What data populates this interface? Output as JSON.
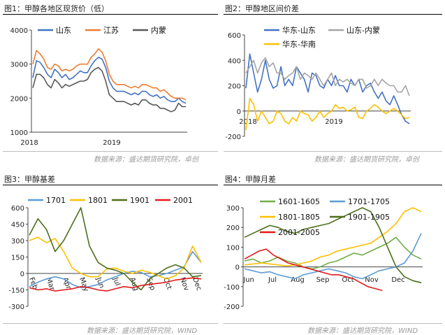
{
  "titles": {
    "fig1": "图1：甲醇各地区现货价（低）",
    "fig2": "图2：甲醇地区间价差",
    "fig3": "图3：甲醇基差",
    "fig4": "图4：甲醇月差"
  },
  "sources": {
    "top_left": "数据来源：盛达期货研究院，卓创",
    "top_right": "数据来源：盛达期货研究院，卓创",
    "bottom_left": "数据来源：盛达期货研究院，WIND",
    "bottom_right": "数据来源：盛达期货研究院，WIND"
  },
  "chart_data": [
    {
      "id": "fig1",
      "type": "line",
      "title": "图1：甲醇各地区现货价（低）",
      "ylim": [
        1000,
        4000
      ],
      "yticks": [
        1000,
        2000,
        3000,
        4000
      ],
      "x_tick_labels": [
        "2018",
        "2019"
      ],
      "legend": "top-left",
      "series": [
        {
          "name": "山东",
          "color": "#4472C4",
          "values": [
            2600,
            3100,
            3050,
            2900,
            2700,
            2600,
            2850,
            2750,
            2600,
            2700,
            2550,
            2600,
            2700,
            2800,
            2750,
            2750,
            2950,
            3100,
            3200,
            3150,
            2900,
            2500,
            2300,
            2200,
            2200,
            2200,
            2150,
            2100,
            2150,
            2100,
            2200,
            2200,
            2100,
            2050,
            2100,
            2000,
            2050,
            1950,
            1900,
            1900,
            2000,
            1900,
            1850
          ]
        },
        {
          "name": "江苏",
          "color": "#ED7D31",
          "values": [
            3000,
            3400,
            3300,
            3150,
            2900,
            2850,
            3000,
            2950,
            2800,
            2850,
            2800,
            2850,
            2950,
            3000,
            3000,
            3000,
            3200,
            3300,
            3450,
            3350,
            3100,
            2700,
            2500,
            2400,
            2400,
            2400,
            2350,
            2300,
            2350,
            2300,
            2400,
            2400,
            2350,
            2300,
            2300,
            2200,
            2250,
            2150,
            2050,
            2000,
            2000,
            2000,
            1950
          ]
        },
        {
          "name": "内蒙",
          "color": "#595959",
          "values": [
            2300,
            2700,
            2700,
            2600,
            2400,
            2300,
            2550,
            2450,
            2300,
            2400,
            2350,
            2400,
            2450,
            2500,
            2500,
            2550,
            2750,
            2850,
            2900,
            2800,
            2500,
            2100,
            2000,
            1900,
            1900,
            1900,
            1850,
            1800,
            1850,
            1800,
            1950,
            1950,
            1850,
            1800,
            1800,
            1700,
            1700,
            1650,
            1600,
            1650,
            1850,
            1750,
            1750
          ]
        }
      ]
    },
    {
      "id": "fig2",
      "type": "line",
      "title": "图2：甲醇地区间价差",
      "ylim": [
        -200,
        600
      ],
      "yticks": [
        -200,
        0,
        200,
        400,
        600
      ],
      "x_tick_labels": [
        "2018",
        "2019"
      ],
      "legend": "top",
      "series": [
        {
          "name": "华东-山东",
          "color": "#4472C4",
          "values": [
            180,
            450,
            300,
            150,
            250,
            400,
            250,
            180,
            200,
            350,
            200,
            250,
            200,
            350,
            300,
            250,
            150,
            300,
            280,
            200,
            180,
            250,
            200,
            280,
            200,
            200,
            150,
            250,
            200,
            250,
            150,
            200,
            220,
            150,
            100,
            150,
            80,
            50,
            120,
            50,
            -30,
            -80,
            -100
          ]
        },
        {
          "name": "山东-内蒙",
          "color": "#A5A5A5",
          "values": [
            300,
            350,
            400,
            300,
            380,
            420,
            350,
            380,
            300,
            300,
            250,
            280,
            300,
            350,
            250,
            300,
            280,
            250,
            300,
            250,
            200,
            250,
            300,
            200,
            250,
            230,
            250,
            220,
            200,
            250,
            250,
            180,
            200,
            250,
            200,
            250,
            220,
            200,
            200,
            150,
            150,
            200,
            120
          ]
        },
        {
          "name": "华东-华南",
          "color": "#FFC000",
          "values": [
            -150,
            100,
            50,
            -80,
            0,
            -50,
            -100,
            -80,
            0,
            -20,
            -80,
            -100,
            -50,
            -80,
            0,
            -20,
            -30,
            -80,
            -50,
            0,
            -50,
            -20,
            0,
            50,
            20,
            30,
            0,
            10,
            30,
            -50,
            -60,
            0,
            20,
            50,
            30,
            0,
            -20,
            0,
            20,
            0,
            -30,
            -60,
            -50
          ]
        }
      ]
    },
    {
      "id": "fig3",
      "type": "line",
      "title": "图3：甲醇基差",
      "ylim": [
        -300,
        600
      ],
      "yticks": [
        -300,
        -150,
        0,
        150,
        300,
        450,
        600
      ],
      "x_tick_labels": [
        "Feb",
        "Mar",
        "Apr",
        "May",
        "Jun",
        "Jul",
        "Aug",
        "Sep",
        "Oct",
        "Nov",
        "Dec"
      ],
      "legend": "top",
      "series": [
        {
          "name": "1701",
          "color": "#5B9BD5",
          "values": [
            -120,
            -80,
            -50,
            -30,
            -50,
            -100,
            -130,
            -120,
            -100,
            -60,
            -30,
            0,
            20,
            10,
            -30,
            -20,
            0,
            30,
            60,
            200,
            100
          ]
        },
        {
          "name": "1801",
          "color": "#FFC000",
          "values": [
            300,
            330,
            280,
            320,
            200,
            50,
            0,
            -30,
            -30,
            40,
            50,
            20,
            0,
            30,
            10,
            -20,
            -50,
            -20,
            50,
            250,
            100
          ]
        },
        {
          "name": "1901",
          "color": "#4E6E1C",
          "values": [
            350,
            500,
            400,
            200,
            300,
            450,
            600,
            250,
            100,
            50,
            30,
            0,
            -80,
            -150,
            -50,
            0,
            50,
            80,
            50,
            -30,
            -20
          ]
        },
        {
          "name": "2001",
          "color": "#E31A1C",
          "values": [
            -130,
            -150,
            -140,
            -160,
            -150,
            -140,
            -120,
            -130,
            -150,
            -160,
            -140,
            -120,
            -130,
            -110,
            -100,
            -90,
            -80,
            -60,
            -50,
            -40,
            -50
          ]
        }
      ]
    },
    {
      "id": "fig4",
      "type": "line",
      "title": "图4：甲醇月差",
      "ylim": [
        -200,
        300
      ],
      "yticks": [
        -200,
        -100,
        0,
        100,
        200,
        300
      ],
      "x_tick_labels": [
        "Jun",
        "Jul",
        "Aug",
        "Sep",
        "Oct",
        "Nov",
        "Dec"
      ],
      "legend": "top",
      "series": [
        {
          "name": "1601-1605",
          "color": "#70AD47",
          "values": [
            30,
            40,
            20,
            30,
            50,
            30,
            20,
            0,
            -10,
            0,
            20,
            30,
            50,
            70,
            60,
            80,
            100,
            120,
            150,
            100,
            60,
            40
          ]
        },
        {
          "name": "1701-1705",
          "color": "#5B9BD5",
          "values": [
            -10,
            -20,
            -30,
            -25,
            -40,
            -50,
            -60,
            -40,
            -30,
            -20,
            -10,
            -20,
            -30,
            -50,
            -60,
            -40,
            -20,
            -10,
            0,
            20,
            80,
            170
          ]
        },
        {
          "name": "1801-1805",
          "color": "#FFC000",
          "values": [
            10,
            15,
            20,
            15,
            10,
            5,
            10,
            20,
            30,
            50,
            60,
            80,
            90,
            100,
            110,
            120,
            150,
            180,
            220,
            280,
            300,
            280
          ]
        },
        {
          "name": "1901-1905",
          "color": "#4E6E1C",
          "values": [
            150,
            170,
            190,
            210,
            200,
            180,
            170,
            190,
            200,
            210,
            220,
            240,
            260,
            280,
            300,
            280,
            200,
            100,
            0,
            -50,
            -70,
            -80
          ]
        },
        {
          "name": "2001-2005",
          "color": "#E31A1C",
          "values": [
            40,
            60,
            80,
            90,
            60,
            40,
            20,
            10,
            0,
            -10,
            -20,
            -30,
            -40,
            -40,
            -50,
            -60,
            -80,
            -100,
            -110,
            -120
          ]
        }
      ]
    }
  ]
}
